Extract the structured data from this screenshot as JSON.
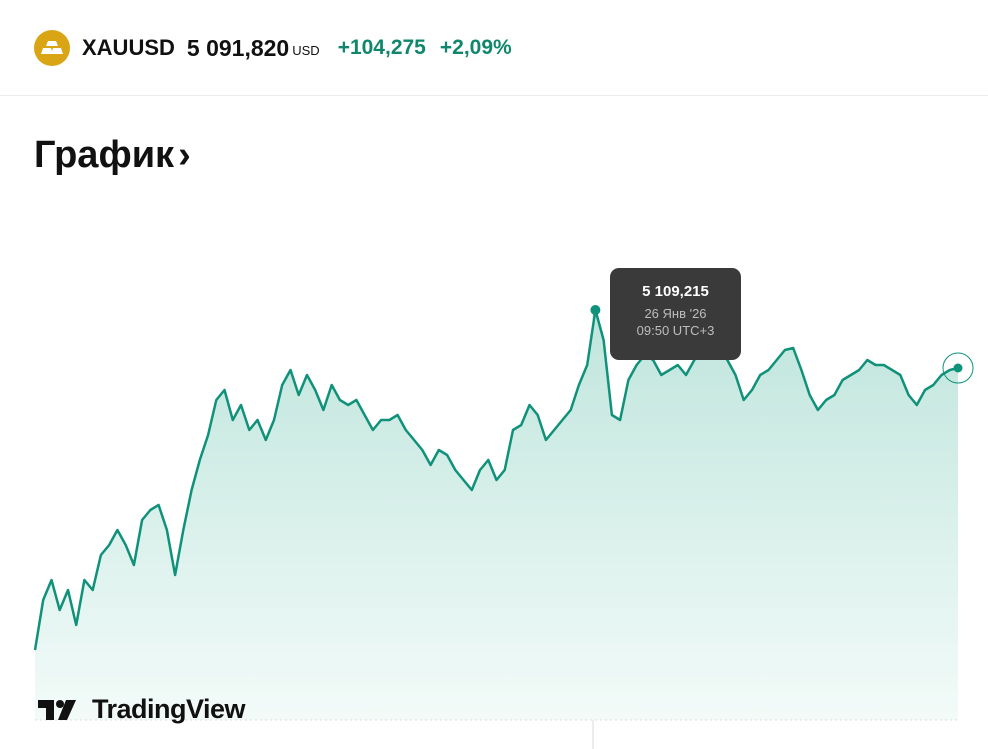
{
  "header": {
    "icon": "gold-bars-icon",
    "ticker": "XAUUSD",
    "price": "5 091,820",
    "currency": "USD",
    "change": "+104,275",
    "change_pct": "+2,09%",
    "positive_color": "#10876c",
    "icon_color": "#d9a514"
  },
  "section": {
    "title": "График",
    "chevron": "›"
  },
  "tooltip": {
    "value": "5 109,215",
    "date": "26 Янв '26",
    "time": "09:50 UTC+3"
  },
  "branding": {
    "logo_text": "TradingView"
  },
  "chart_data": {
    "type": "area",
    "line_color": "#10917a",
    "fill_color": "#c6e8e0",
    "grid": false,
    "axes_visible": false,
    "highlighted_point": {
      "value": 5109.215,
      "label": "26 Янв '26 09:50 UTC+3"
    },
    "last_value": 5091.82,
    "values": [
      5007.2,
      5022.2,
      5028.2,
      5019.2,
      5025.2,
      5014.7,
      5028.2,
      5025.2,
      5035.7,
      5038.7,
      5043.2,
      5038.7,
      5032.7,
      5046.2,
      5049.2,
      5050.7,
      5043.2,
      5029.7,
      5043.2,
      5055.2,
      5064.2,
      5071.7,
      5082.2,
      5085.2,
      5076.2,
      5080.7,
      5073.2,
      5076.2,
      5070.2,
      5076.2,
      5086.7,
      5091.2,
      5083.7,
      5089.7,
      5085.2,
      5079.2,
      5086.7,
      5082.2,
      5080.7,
      5082.2,
      5077.7,
      5073.2,
      5076.2,
      5076.2,
      5077.7,
      5073.2,
      5070.2,
      5067.2,
      5062.7,
      5067.2,
      5065.7,
      5061.2,
      5058.2,
      5055.2,
      5061.2,
      5064.2,
      5058.2,
      5061.2,
      5073.2,
      5074.7,
      5080.7,
      5077.7,
      5070.2,
      5073.2,
      5076.2,
      5079.2,
      5086.7,
      5092.7,
      5109.2,
      5100.2,
      5077.7,
      5076.2,
      5088.2,
      5092.7,
      5095.7,
      5094.2,
      5089.7,
      5091.2,
      5092.7,
      5089.7,
      5094.2,
      5097.2,
      5095.7,
      5098.7,
      5094.2,
      5089.7,
      5082.2,
      5085.2,
      5089.7,
      5091.2,
      5094.2,
      5097.2,
      5097.8,
      5091.2,
      5083.7,
      5079.2,
      5082.2,
      5083.7,
      5088.2,
      5089.7,
      5091.2,
      5094.2,
      5092.7,
      5092.7,
      5091.2,
      5089.7,
      5083.7,
      5080.7,
      5085.2,
      5086.7,
      5089.7,
      5091.2,
      5091.8
    ]
  }
}
